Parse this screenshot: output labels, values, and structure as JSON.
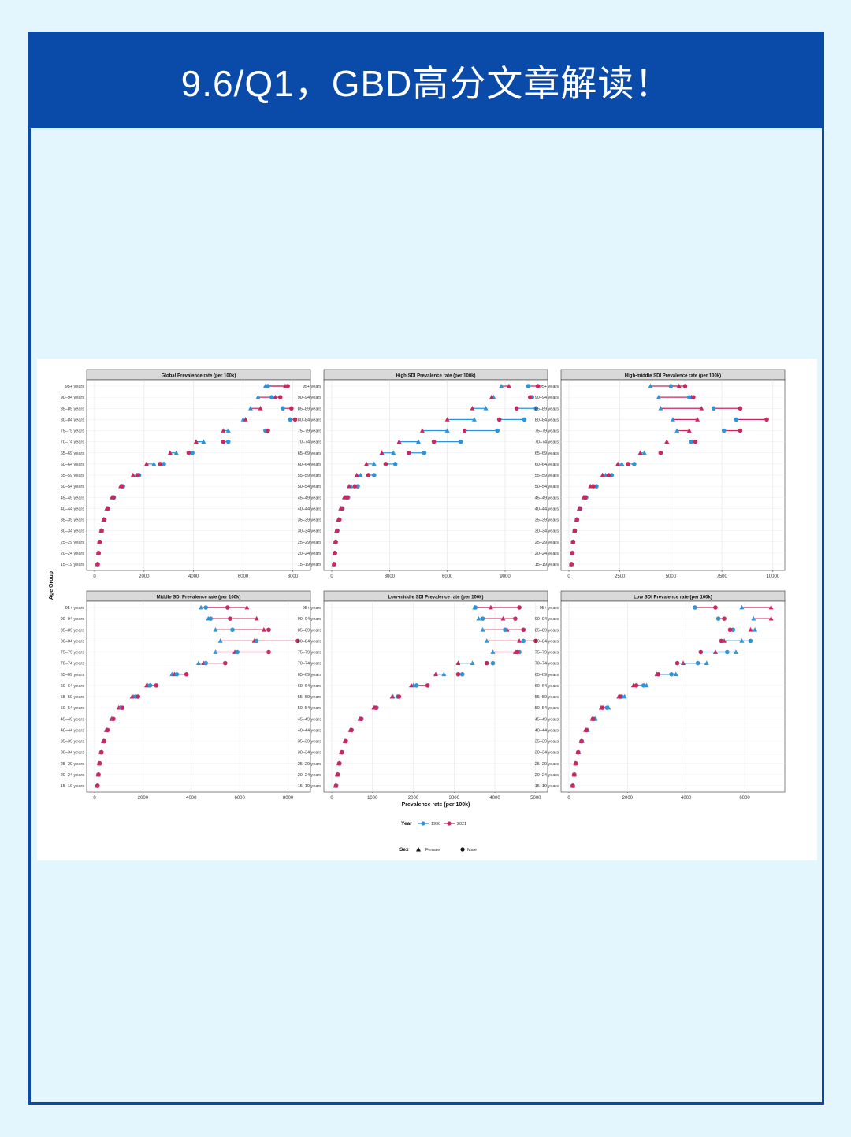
{
  "header": {
    "title": "9.6/Q1，GBD高分文章解读！"
  },
  "colors": {
    "banner": "#0a4aa8",
    "page_bg": "#e4f6fd",
    "y1990": "#2f93d8",
    "y2021": "#c8285f",
    "strip": "#d9d9d9"
  },
  "axes": {
    "ylabel": "Age Group",
    "xlabel": "Prevalence rate (per 100k)",
    "age_groups": [
      "95+ years",
      "90–94 years",
      "85–89 years",
      "80–84 years",
      "75–79 years",
      "70–74 years",
      "65–69 years",
      "60–64 years",
      "55–59 years",
      "50–54 years",
      "45–49 years",
      "40–44 years",
      "35–39 years",
      "30–34 years",
      "25–29 years",
      "20–24 years",
      "15–19 years"
    ]
  },
  "legend": {
    "year_title": "Year",
    "years": [
      "1990",
      "2021"
    ],
    "sex_title": "Sex",
    "sexes": [
      "Female",
      "Male"
    ]
  },
  "chart_data": [
    {
      "type": "dumbbell",
      "title": "Global Prevalence rate (per 100k)",
      "xlim": [
        0,
        8400
      ],
      "ticks": [
        0,
        2000,
        4000,
        6000,
        8000
      ],
      "series": [
        {
          "sex": "Female",
          "y1990": [
            6900,
            6600,
            6300,
            6000,
            5400,
            4400,
            3300,
            2400,
            1700,
            1100,
            750,
            520,
            380,
            280,
            200,
            160,
            120
          ],
          "y2021": [
            7700,
            7300,
            6700,
            6100,
            5200,
            4100,
            3050,
            2100,
            1550,
            1050,
            700,
            490,
            360,
            270,
            190,
            150,
            110
          ]
        },
        {
          "sex": "Male",
          "y1990": [
            7000,
            7150,
            7600,
            7900,
            6900,
            5400,
            3950,
            2800,
            1800,
            1150,
            780,
            540,
            400,
            290,
            210,
            170,
            130
          ],
          "y2021": [
            7800,
            7500,
            7950,
            8100,
            7000,
            5200,
            3800,
            2650,
            1750,
            1100,
            760,
            530,
            390,
            285,
            205,
            160,
            125
          ]
        }
      ]
    },
    {
      "type": "dumbbell",
      "title": "High SDI Prevalence rate (per 100k)",
      "xlim": [
        0,
        10800
      ],
      "ticks": [
        0,
        3000,
        6000,
        9000
      ],
      "series": [
        {
          "sex": "Female",
          "y1990": [
            8800,
            8400,
            8000,
            7400,
            6000,
            4500,
            3200,
            2200,
            1500,
            1000,
            700,
            480,
            350,
            260,
            190,
            150,
            110
          ],
          "y2021": [
            9200,
            8300,
            7300,
            6000,
            4700,
            3500,
            2600,
            1800,
            1300,
            900,
            650,
            460,
            340,
            250,
            185,
            145,
            105
          ]
        },
        {
          "sex": "Male",
          "y1990": [
            10200,
            10400,
            10600,
            10000,
            8600,
            6700,
            4800,
            3300,
            2200,
            1350,
            850,
            560,
            400,
            290,
            210,
            170,
            130
          ],
          "y2021": [
            10700,
            10300,
            9600,
            8700,
            6900,
            5300,
            4000,
            2800,
            1900,
            1200,
            790,
            530,
            390,
            280,
            205,
            165,
            125
          ]
        }
      ]
    },
    {
      "type": "dumbbell",
      "title": "High-middle SDI Prevalence rate (per 100k)",
      "xlim": [
        0,
        10200
      ],
      "ticks": [
        0,
        2500,
        5000,
        7500,
        10000
      ],
      "series": [
        {
          "sex": "Female",
          "y1990": [
            4000,
            4400,
            4500,
            5100,
            5300,
            4800,
            3700,
            2600,
            1800,
            1150,
            760,
            520,
            380,
            280,
            200,
            160,
            120
          ],
          "y2021": [
            5400,
            6000,
            6500,
            6300,
            5900,
            4800,
            3500,
            2400,
            1650,
            1050,
            720,
            500,
            370,
            275,
            195,
            155,
            115
          ]
        },
        {
          "sex": "Male",
          "y1990": [
            5000,
            5900,
            7100,
            8200,
            7600,
            6000,
            4500,
            3200,
            2100,
            1350,
            850,
            560,
            400,
            290,
            210,
            170,
            130
          ],
          "y2021": [
            5700,
            6100,
            8400,
            9700,
            8400,
            6200,
            4500,
            2900,
            1950,
            1200,
            800,
            540,
            395,
            285,
            205,
            165,
            125
          ]
        }
      ]
    },
    {
      "type": "dumbbell",
      "title": "Middle SDI Prevalence rate (per 100k)",
      "xlim": [
        0,
        8600
      ],
      "ticks": [
        0,
        2000,
        4000,
        6000,
        8000
      ],
      "series": [
        {
          "sex": "Female",
          "y1990": [
            4400,
            4700,
            5000,
            5200,
            5000,
            4300,
            3200,
            2200,
            1600,
            1050,
            720,
            500,
            370,
            270,
            195,
            155,
            115
          ],
          "y2021": [
            6300,
            6700,
            7000,
            6600,
            5800,
            4500,
            3300,
            2150,
            1550,
            1000,
            700,
            490,
            360,
            265,
            190,
            150,
            110
          ]
        },
        {
          "sex": "Male",
          "y1990": [
            4600,
            4800,
            5700,
            6700,
            5900,
            4600,
            3400,
            2300,
            1700,
            1100,
            760,
            520,
            390,
            280,
            205,
            160,
            120
          ],
          "y2021": [
            5500,
            5600,
            7200,
            8400,
            7200,
            5400,
            3800,
            2550,
            1800,
            1150,
            780,
            540,
            400,
            285,
            210,
            165,
            125
          ]
        }
      ]
    },
    {
      "type": "dumbbell",
      "title": "Low-middle SDI Prevalence rate (per 100k)",
      "xlim": [
        0,
        5100
      ],
      "ticks": [
        0,
        1000,
        2000,
        3000,
        4000,
        5000
      ],
      "series": [
        {
          "sex": "Female",
          "y1990": [
            3500,
            3600,
            3700,
            3800,
            3950,
            3450,
            2750,
            2000,
            1500,
            1050,
            700,
            470,
            330,
            240,
            180,
            140,
            100
          ],
          "y2021": [
            3900,
            4200,
            4300,
            4600,
            4500,
            3100,
            2550,
            1950,
            1480,
            1030,
            690,
            460,
            325,
            235,
            175,
            135,
            95
          ]
        },
        {
          "sex": "Male",
          "y1990": [
            3520,
            3700,
            4250,
            4700,
            4600,
            3950,
            3200,
            2080,
            1620,
            1100,
            730,
            490,
            350,
            255,
            190,
            150,
            110
          ],
          "y2021": [
            4600,
            4500,
            4700,
            5000,
            4550,
            3800,
            3100,
            2350,
            1650,
            1080,
            720,
            480,
            345,
            250,
            185,
            145,
            105
          ]
        }
      ]
    },
    {
      "type": "dumbbell",
      "title": "Low SDI Prevalence rate (per 100k)",
      "xlim": [
        0,
        7100
      ],
      "ticks": [
        0,
        2000,
        4000,
        6000
      ],
      "series": [
        {
          "sex": "Female",
          "y1990": [
            5900,
            6300,
            6350,
            5900,
            5700,
            4700,
            3650,
            2650,
            1900,
            1350,
            900,
            640,
            450,
            330,
            240,
            190,
            140
          ],
          "y2021": [
            6900,
            6900,
            6200,
            5300,
            5000,
            3900,
            3000,
            2200,
            1700,
            1100,
            800,
            570,
            420,
            310,
            220,
            175,
            130
          ]
        },
        {
          "sex": "Male",
          "y1990": [
            4300,
            5100,
            5600,
            6200,
            5400,
            4400,
            3500,
            2550,
            1800,
            1300,
            880,
            620,
            440,
            320,
            235,
            185,
            135
          ],
          "y2021": [
            5000,
            5300,
            5500,
            5200,
            4500,
            3700,
            3050,
            2300,
            1750,
            1150,
            820,
            600,
            430,
            315,
            230,
            180,
            130
          ]
        }
      ]
    }
  ]
}
